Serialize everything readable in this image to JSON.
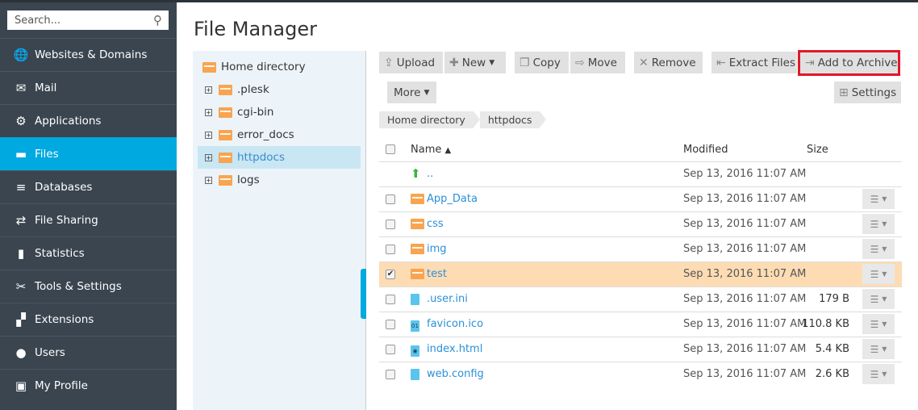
{
  "sidebar": {
    "search_placeholder": "Search...",
    "items": [
      {
        "label": "Websites & Domains",
        "icon": "globe-icon",
        "glyph": "🌐"
      },
      {
        "label": "Mail",
        "icon": "mail-icon",
        "glyph": "✉"
      },
      {
        "label": "Applications",
        "icon": "gear-icon",
        "glyph": "⚙"
      },
      {
        "label": "Files",
        "icon": "folder-icon",
        "glyph": "▬",
        "active": true
      },
      {
        "label": "Databases",
        "icon": "database-icon",
        "glyph": "≡"
      },
      {
        "label": "File Sharing",
        "icon": "file-sharing-icon",
        "glyph": "⇄"
      },
      {
        "label": "Statistics",
        "icon": "bar-chart-icon",
        "glyph": "▮"
      },
      {
        "label": "Tools & Settings",
        "icon": "tools-icon",
        "glyph": "✂"
      },
      {
        "label": "Extensions",
        "icon": "extensions-icon",
        "glyph": "▞"
      },
      {
        "label": "Users",
        "icon": "user-icon",
        "glyph": "●"
      },
      {
        "label": "My Profile",
        "icon": "profile-icon",
        "glyph": "▣"
      }
    ]
  },
  "page_title": "File Manager",
  "tree": {
    "root": "Home directory",
    "items": [
      ".plesk",
      "cgi-bin",
      "error_docs",
      "httpdocs",
      "logs"
    ],
    "selected": "httpdocs"
  },
  "toolbar": {
    "upload": "Upload",
    "new": "New",
    "copy": "Copy",
    "move": "Move",
    "remove": "Remove",
    "extract": "Extract Files",
    "add_archive": "Add to Archive",
    "more": "More",
    "settings": "Settings"
  },
  "highlight_color": "#e0182a",
  "breadcrumb": [
    "Home directory",
    "httpdocs"
  ],
  "table": {
    "headers": {
      "name": "Name",
      "modified": "Modified",
      "size": "Size"
    },
    "sort": "name-asc",
    "rows": [
      {
        "name": "..",
        "modified": "Sep 13, 2016 11:07 AM",
        "size": "",
        "type": "up"
      },
      {
        "name": "App_Data",
        "modified": "Sep 13, 2016 11:07 AM",
        "size": "",
        "type": "folder"
      },
      {
        "name": "css",
        "modified": "Sep 13, 2016 11:07 AM",
        "size": "",
        "type": "folder"
      },
      {
        "name": "img",
        "modified": "Sep 13, 2016 11:07 AM",
        "size": "",
        "type": "folder"
      },
      {
        "name": "test",
        "modified": "Sep 13, 2016 11:07 AM",
        "size": "",
        "type": "folder",
        "checked": true
      },
      {
        "name": ".user.ini",
        "modified": "Sep 13, 2016 11:07 AM",
        "size": "179 B",
        "type": "file"
      },
      {
        "name": "favicon.ico",
        "modified": "Sep 13, 2016 11:07 AM",
        "size": "110.8 KB",
        "type": "binary"
      },
      {
        "name": "index.html",
        "modified": "Sep 13, 2016 11:07 AM",
        "size": "5.4 KB",
        "type": "html"
      },
      {
        "name": "web.config",
        "modified": "Sep 13, 2016 11:07 AM",
        "size": "2.6 KB",
        "type": "file"
      }
    ]
  }
}
